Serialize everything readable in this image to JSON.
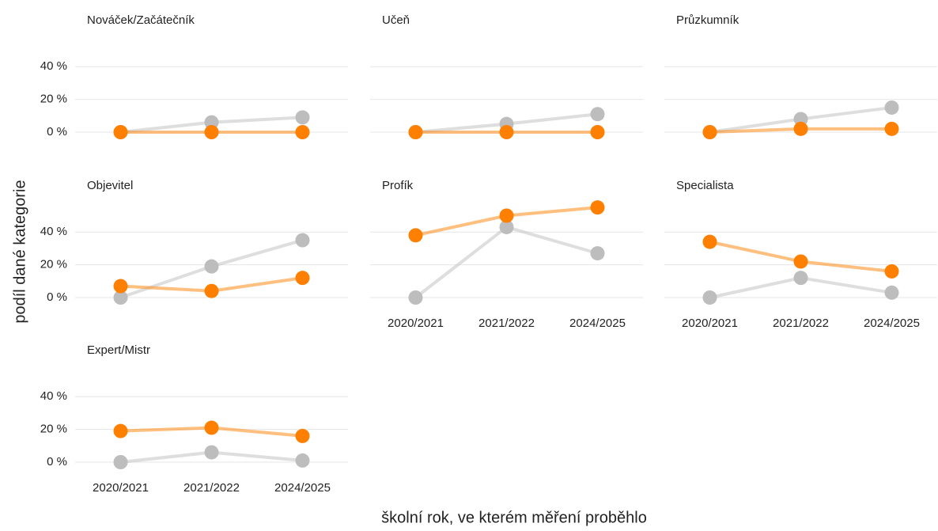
{
  "x_label": "školní rok, ve kterém měření proběhlo",
  "y_label": "podíl dané kategorie",
  "chart_data": [
    {
      "type": "line",
      "title": "Nováček/Začátečník",
      "series": [
        {
          "color": "#bdbdbd",
          "values": [
            0,
            6,
            9
          ]
        },
        {
          "color": "#ff7f00",
          "values": [
            0,
            0,
            0
          ]
        }
      ],
      "ylim": [
        -3,
        57
      ],
      "yticks": [
        {
          "value": 0,
          "label": "0 %"
        },
        {
          "value": 20,
          "label": "20 %"
        },
        {
          "value": 40,
          "label": "40 %"
        }
      ]
    },
    {
      "type": "line",
      "title": "Učeň",
      "series": [
        {
          "color": "#bdbdbd",
          "values": [
            0,
            5,
            11
          ]
        },
        {
          "color": "#ff7f00",
          "values": [
            0,
            0,
            0
          ]
        }
      ],
      "ylim": [
        -3,
        57
      ],
      "yticks": [
        0,
        20,
        40
      ]
    },
    {
      "type": "line",
      "title": "Průzkumník",
      "series": [
        {
          "color": "#bdbdbd",
          "values": [
            0,
            8,
            15
          ]
        },
        {
          "color": "#ff7f00",
          "values": [
            0,
            2,
            2
          ]
        }
      ],
      "ylim": [
        -3,
        57
      ],
      "yticks": [
        0,
        20,
        40
      ]
    },
    {
      "type": "line",
      "title": "Objevitel",
      "series": [
        {
          "color": "#bdbdbd",
          "values": [
            0,
            19,
            35
          ]
        },
        {
          "color": "#ff7f00",
          "values": [
            7,
            4,
            12
          ]
        }
      ],
      "ylim": [
        -3,
        57
      ],
      "yticks": [
        {
          "value": 0,
          "label": "0 %"
        },
        {
          "value": 20,
          "label": "20 %"
        },
        {
          "value": 40,
          "label": "40 %"
        }
      ]
    },
    {
      "type": "line",
      "title": "Profík",
      "categories": [
        "2020/2021",
        "2021/2022",
        "2024/2025"
      ],
      "series": [
        {
          "color": "#bdbdbd",
          "values": [
            0,
            43,
            27
          ]
        },
        {
          "color": "#ff7f00",
          "values": [
            38,
            50,
            55
          ]
        }
      ],
      "ylim": [
        -3,
        57
      ],
      "yticks": [
        0,
        20,
        40
      ]
    },
    {
      "type": "line",
      "title": "Specialista",
      "categories": [
        "2020/2021",
        "2021/2022",
        "2024/2025"
      ],
      "series": [
        {
          "color": "#bdbdbd",
          "values": [
            0,
            12,
            3
          ]
        },
        {
          "color": "#ff7f00",
          "values": [
            34,
            22,
            16
          ]
        }
      ],
      "ylim": [
        -3,
        57
      ],
      "yticks": [
        0,
        20,
        40
      ]
    },
    {
      "type": "line",
      "title": "Expert/Mistr",
      "categories": [
        "2020/2021",
        "2021/2022",
        "2024/2025"
      ],
      "series": [
        {
          "color": "#bdbdbd",
          "values": [
            0,
            6,
            1
          ]
        },
        {
          "color": "#ff7f00",
          "values": [
            19,
            21,
            16
          ]
        }
      ],
      "ylim": [
        -3,
        57
      ],
      "yticks": [
        {
          "value": 0,
          "label": "0 %"
        },
        {
          "value": 20,
          "label": "20 %"
        },
        {
          "value": 40,
          "label": "40 %"
        }
      ]
    }
  ]
}
